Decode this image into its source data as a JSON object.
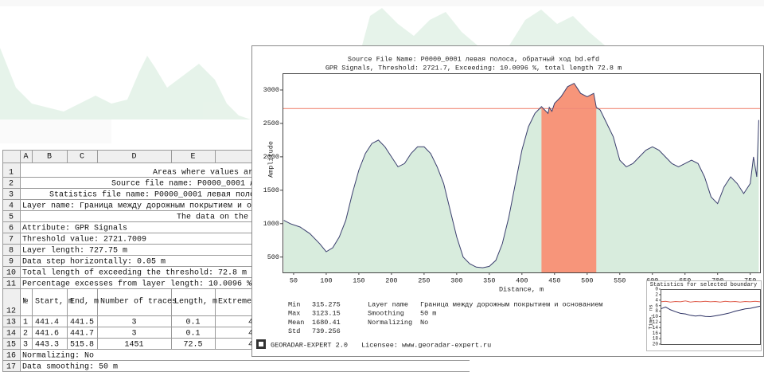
{
  "spreadsheet": {
    "column_headers": [
      "A",
      "B",
      "C",
      "D",
      "E"
    ],
    "row_numbers": [
      1,
      2,
      3,
      4,
      5,
      6,
      7,
      8,
      9,
      10,
      11,
      12,
      13,
      14,
      15,
      16,
      17
    ],
    "rows_before": [
      "Areas where values are",
      "Source file name: P0000_0001 лева",
      "Statistics file name: P0000_0001 левая полоса,",
      "Layer name: Граница между дорожным покрытием и основа",
      "The data on the l",
      "Attribute: GPR Signals",
      "Threshold value: 2721.7009",
      "Layer length: 727.75 m",
      "Data step horizontally: 0.05 m",
      "Total length of exceeding the threshold: 72.8 m",
      "Percentage excesses from layer length: 10.0096 %"
    ],
    "table": {
      "header": [
        "№",
        "Start, m",
        "End, m",
        "Number of traces",
        "Length, m",
        "Extreme"
      ],
      "rows": [
        [
          1,
          441.4,
          441.5,
          3,
          0.1,
          4
        ],
        [
          2,
          441.6,
          441.7,
          3,
          0.1,
          4
        ],
        [
          3,
          443.3,
          515.8,
          1451,
          72.5,
          4
        ]
      ]
    },
    "rows_after": [
      "Normalizing: No",
      "Data smoothing: 50 m"
    ]
  },
  "window": {
    "title": "Source File Name: P0000_0001 левая полоса, обратный ход bd.efd",
    "subtitle": "GPR Signals, Threshold: 2721.7, Exceeding: 10.0096 %, total length 72.8 m",
    "stats": [
      [
        "Min",
        315.275
      ],
      [
        "Max",
        3123.15
      ],
      [
        "Mean",
        1680.41
      ],
      [
        "Std",
        739.256
      ]
    ],
    "layer_info": [
      [
        "Layer name",
        "Граница между дорожным покрытием и основанием"
      ],
      [
        "Smoothing",
        "50 m"
      ],
      [
        "Normalizing",
        "No"
      ]
    ],
    "footer": {
      "product": "GEORADAR-EXPERT 2.0",
      "licensee": "Licensee: www.georadar-expert.ru"
    }
  },
  "chart_data": [
    {
      "type": "area",
      "x_label": "Distance, m",
      "y_label": "Amplitude",
      "x": [
        35,
        45,
        60,
        75,
        90,
        100,
        110,
        120,
        130,
        140,
        150,
        160,
        170,
        180,
        190,
        200,
        210,
        220,
        230,
        240,
        250,
        260,
        270,
        280,
        290,
        300,
        310,
        320,
        330,
        340,
        350,
        360,
        370,
        380,
        390,
        400,
        410,
        420,
        430,
        440,
        442,
        446,
        450,
        460,
        470,
        480,
        490,
        500,
        510,
        514,
        520,
        530,
        540,
        550,
        560,
        570,
        580,
        590,
        600,
        610,
        620,
        630,
        640,
        650,
        660,
        670,
        680,
        690,
        700,
        710,
        720,
        730,
        740,
        750,
        755,
        760,
        763
      ],
      "values": [
        1050,
        1000,
        950,
        850,
        700,
        580,
        640,
        800,
        1050,
        1450,
        1800,
        2050,
        2200,
        2250,
        2150,
        2000,
        1850,
        1900,
        2050,
        2150,
        2150,
        2050,
        1850,
        1600,
        1200,
        800,
        500,
        400,
        350,
        340,
        360,
        450,
        700,
        1100,
        1600,
        2100,
        2450,
        2650,
        2750,
        2650,
        2740,
        2680,
        2800,
        2900,
        3050,
        3100,
        2950,
        2900,
        2950,
        2740,
        2700,
        2500,
        2300,
        1950,
        1850,
        1900,
        2000,
        2100,
        2150,
        2100,
        2000,
        1900,
        1850,
        1900,
        1950,
        1900,
        1700,
        1400,
        1300,
        1550,
        1700,
        1600,
        1450,
        1600,
        2000,
        1700,
        2550
      ],
      "color": "#d8ecdd",
      "line_color": "#3b3f6e",
      "threshold": 2721.7,
      "threshold_color": "#f08a78",
      "exceed_color": "#f7957a",
      "xlim": [
        33,
        765
      ],
      "xticks": [
        50,
        100,
        150,
        200,
        250,
        300,
        350,
        400,
        450,
        500,
        550,
        600,
        650,
        700,
        750
      ],
      "ylim": [
        270,
        3250
      ],
      "yticks": [
        500,
        1000,
        1500,
        2000,
        2500,
        3000
      ]
    },
    {
      "type": "line",
      "title": "Statistics for selected boundary",
      "y_label": "Time, ns",
      "ylim": [
        0,
        20
      ],
      "yticks": [
        0,
        2,
        4,
        6,
        8,
        10,
        12,
        14,
        16,
        18,
        20
      ],
      "series": [
        {
          "color": "#e0604f",
          "values": [
            4.6,
            4.4,
            4.7,
            4.5,
            4.6,
            4.3,
            4.7,
            4.5,
            4.6,
            4.4,
            4.6,
            4.5,
            4.7,
            4.4,
            4.6,
            4.5,
            4.7,
            4.5,
            4.6,
            4.4,
            4.6
          ]
        },
        {
          "color": "#2b3063",
          "values": [
            7.2,
            6.5,
            7.5,
            8.2,
            8.8,
            9.0,
            9.5,
            9.8,
            9.6,
            9.9,
            10.0,
            9.7,
            9.4,
            9.0,
            8.6,
            8.0,
            7.6,
            7.2,
            7.0,
            6.6,
            6.2
          ]
        }
      ]
    }
  ]
}
